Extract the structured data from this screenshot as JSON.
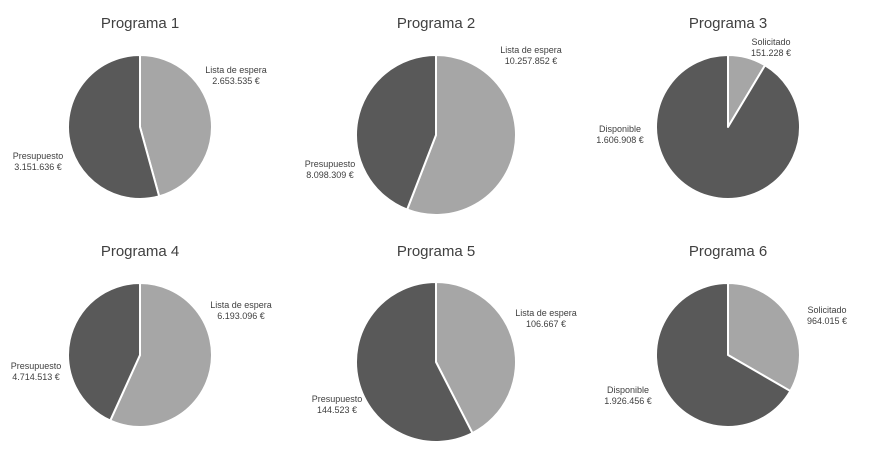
{
  "colors": {
    "light": "#a6a6a6",
    "dark": "#595959",
    "separator": "#ffffff",
    "text": "#404040"
  },
  "chart_data": [
    {
      "type": "pie",
      "title": "Programa 1",
      "slices": [
        {
          "name": "Lista de espera",
          "value": 2653535,
          "value_label": "2.653.535 €",
          "color": "#a6a6a6"
        },
        {
          "name": "Presupuesto",
          "value": 3151636,
          "value_label": "3.151.636 €",
          "color": "#595959"
        }
      ]
    },
    {
      "type": "pie",
      "title": "Programa 2",
      "slices": [
        {
          "name": "Lista de espera",
          "value": 10257852,
          "value_label": "10.257.852 €",
          "color": "#a6a6a6"
        },
        {
          "name": "Presupuesto",
          "value": 8098309,
          "value_label": "8.098.309 €",
          "color": "#595959"
        }
      ]
    },
    {
      "type": "pie",
      "title": "Programa 3",
      "slices": [
        {
          "name": "Solicitado",
          "value": 151228,
          "value_label": "151.228 €",
          "color": "#a6a6a6"
        },
        {
          "name": "Disponible",
          "value": 1606908,
          "value_label": "1.606.908 €",
          "color": "#595959"
        }
      ]
    },
    {
      "type": "pie",
      "title": "Programa 4",
      "slices": [
        {
          "name": "Lista de espera",
          "value": 6193096,
          "value_label": "6.193.096 €",
          "color": "#a6a6a6"
        },
        {
          "name": "Presupuesto",
          "value": 4714513,
          "value_label": "4.714.513 €",
          "color": "#595959"
        }
      ]
    },
    {
      "type": "pie",
      "title": "Programa 5",
      "slices": [
        {
          "name": "Lista de espera",
          "value": 106667,
          "value_label": "106.667 €",
          "color": "#a6a6a6"
        },
        {
          "name": "Presupuesto",
          "value": 144523,
          "value_label": "144.523 €",
          "color": "#595959"
        }
      ]
    },
    {
      "type": "pie",
      "title": "Programa 6",
      "slices": [
        {
          "name": "Solicitado",
          "value": 964015,
          "value_label": "964.015 €",
          "color": "#a6a6a6"
        },
        {
          "name": "Disponible",
          "value": 1926456,
          "value_label": "1.926.456 €",
          "color": "#595959"
        }
      ]
    }
  ]
}
